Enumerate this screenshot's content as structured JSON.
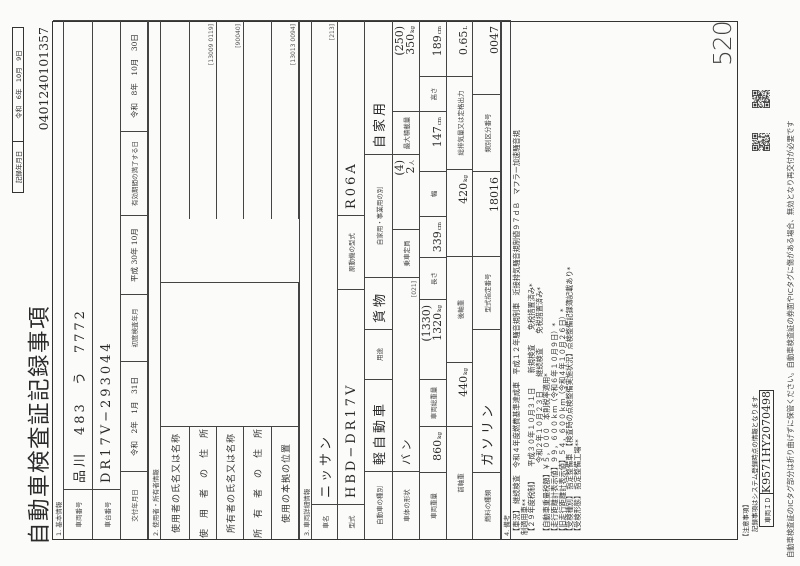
{
  "header": {
    "title": "自動車検査証記録事項",
    "record_date_label": "記録年月日",
    "record_date": "令和　6年　10月　9日",
    "document_number": "0401240101357"
  },
  "basic": {
    "section": "1. 基本情報",
    "reg_label": "車両番号",
    "reg_value": "品川　483　う　7772",
    "chassis_label": "車台番号",
    "chassis_value": "DR17V−293044",
    "issue_label": "交付年月日",
    "issue_value": "令和　2年　1月　31日",
    "first_reg_label": "初度検査年月",
    "first_reg_value": "平成 30年 10月",
    "expiry_label": "有効期間の満了する日",
    "expiry_value": "令和　8年　10月　30日"
  },
  "owner": {
    "section": "2. 使用者・所有者情報",
    "rows": [
      {
        "label": "使用者の氏名又は名称"
      },
      {
        "label": "使　用　者　の　住　所",
        "code": "[13009 0119]"
      },
      {
        "label": "所有者の氏名又は名称",
        "code": "[90040]"
      },
      {
        "label": "所　有　者　の　住　所"
      },
      {
        "label": "使用の本拠の位置",
        "code": "[13013 0094]"
      }
    ]
  },
  "vehicle": {
    "section": "3. 車両詳細情報",
    "name_label": "車名",
    "name": "ニッサン",
    "name_code": "[213]",
    "model_label": "型式",
    "model": "HBD−DR17V",
    "engine_label": "原動機の型式",
    "engine": "R06A",
    "type_label": "自動車の種別",
    "type": "軽自動車",
    "use_label": "用途",
    "use": "貨物",
    "private_label": "自家用・事業用の別",
    "private": "自家用",
    "body_label": "車体の形状",
    "body": "バン",
    "body_code": "[021]",
    "capacity_label": "乗車定員",
    "capacity_paren": "(4)",
    "capacity": "2",
    "capacity_unit": "人",
    "max_load_label": "最大積載量",
    "max_load_paren": "(250)",
    "max_load": "350",
    "kg": "kg",
    "weight_label": "車両重量",
    "weight": "860",
    "gross_label": "車両総重量",
    "gross_paren": "(1330)",
    "gross": "1320",
    "length_label": "長さ",
    "length": "339",
    "cm": "cm",
    "width_label": "幅",
    "width": "147",
    "height_label": "高さ",
    "height": "189",
    "front_axle_label": "前軸重",
    "front_axle": "440",
    "rear_axle_label": "後軸重",
    "rear_axle": "420",
    "displacement_label": "総排気量又は定格出力",
    "displacement": "0.65",
    "liter": "L",
    "fuel_label": "燃料の種類",
    "fuel": "ガソリン",
    "type_no_label": "型式指定番号",
    "type_no": "18016",
    "category_label": "類別区分番号",
    "category": "0047"
  },
  "remarks": {
    "section": "4. 備考",
    "lines": [
      "【車況】 継続検査　令和４年度燃費基準達成車　平成１２年騒音規制車　近接排気騒音規制値９７ｄＢ　マフラー加速騒音規",
      "制適用車**",
      "【２９年度税制】　　平成３０年１０月３１日　　新規検査　　免税措置済み*",
      "　　　　　　　　　　令和２年１０月２３日　　継続検査　　免税措置済み*",
      "【自動車重量税額】￥５，０００　本則税率適用*",
      "【走行距離計表示値】９９，６００ｋｍ（令和６年１０月９日）*",
      "【旧走行距離計表示値】５４，６００ｋｍ（令和４年１０月２６日）*",
      "【受検種別】 指定整備車　【検査時の点検整備実施状況】点検整備記録簿記載あり*",
      "【受検形態】 指定整備工場**"
    ]
  },
  "handwritten_note": "520",
  "notes": {
    "heading": "【注意事項】",
    "text": "記録事項はシステム登録時点の情報となります",
    "vehicle_id_label": "車両ＩＤ",
    "vehicle_id": "K9571HY2070498"
  },
  "footer": "自動車検査証のICタグ部分は折り曲げずに保管ください。自動車検査証の券面やICタグに傷がある場合、無効となり再交付が必要です",
  "icons": {
    "qr_codes": [
      "qr-code-icon",
      "qr-code-icon"
    ]
  }
}
